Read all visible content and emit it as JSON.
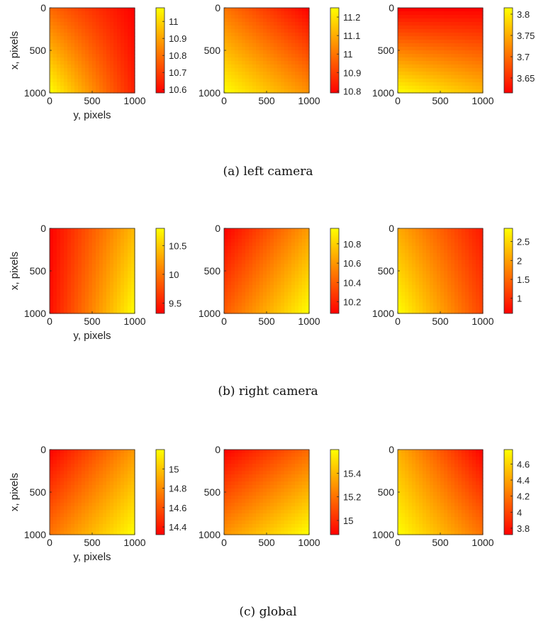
{
  "chart_data": [
    {
      "type": "heatmap",
      "group": "(a) left camera",
      "xlabel": "y, pixels",
      "ylabel": "x, pixels",
      "xlim": [
        0,
        1000
      ],
      "ylim": [
        0,
        1000
      ],
      "x_ticks": [
        "0",
        "500",
        "1000"
      ],
      "y_ticks": [
        "0",
        "500",
        "1000"
      ],
      "colormap": [
        "#ff0000",
        "#ffff00"
      ],
      "panels": [
        {
          "corners": {
            "top_left": 10.78,
            "top_right": 10.58,
            "bottom_left": 11.08,
            "bottom_right": 10.64
          },
          "colorbar": {
            "range": [
              10.58,
              11.08
            ],
            "ticks": [
              10.6,
              10.7,
              10.8,
              10.9,
              11
            ],
            "tick_labels": [
              "10.6",
              "10.7",
              "10.8",
              "10.9",
              "11"
            ]
          }
        },
        {
          "corners": {
            "top_left": 11.0,
            "top_right": 10.79,
            "bottom_left": 11.25,
            "bottom_right": 11.05
          },
          "colorbar": {
            "range": [
              10.79,
              11.25
            ],
            "ticks": [
              10.8,
              10.9,
              11,
              11.1,
              11.2
            ],
            "tick_labels": [
              "10.8",
              "10.9",
              "11",
              "11.1",
              "11.2"
            ]
          }
        },
        {
          "corners": {
            "top_left": 3.615,
            "top_right": 3.615,
            "bottom_left": 3.815,
            "bottom_right": 3.76
          },
          "colorbar": {
            "range": [
              3.615,
              3.815
            ],
            "ticks": [
              3.65,
              3.7,
              3.75,
              3.8
            ],
            "tick_labels": [
              "3.65",
              "3.7",
              "3.75",
              "3.8"
            ]
          }
        }
      ]
    },
    {
      "type": "heatmap",
      "group": "(b) right camera",
      "xlabel": "y, pixels",
      "ylabel": "x, pixels",
      "xlim": [
        0,
        1000
      ],
      "ylim": [
        0,
        1000
      ],
      "x_ticks": [
        "0",
        "500",
        "1000"
      ],
      "y_ticks": [
        "0",
        "500",
        "1000"
      ],
      "colormap": [
        "#ff0000",
        "#ffff00"
      ],
      "panels": [
        {
          "corners": {
            "top_left": 9.32,
            "top_right": 10.4,
            "bottom_left": 9.4,
            "bottom_right": 10.8
          },
          "colorbar": {
            "range": [
              9.32,
              10.8
            ],
            "ticks": [
              9.5,
              10,
              10.5
            ],
            "tick_labels": [
              "9.5",
              "10",
              "10.5"
            ]
          }
        },
        {
          "corners": {
            "top_left": 10.08,
            "top_right": 10.62,
            "bottom_left": 10.4,
            "bottom_right": 10.96
          },
          "colorbar": {
            "range": [
              10.08,
              10.96
            ],
            "ticks": [
              10.2,
              10.4,
              10.6,
              10.8
            ],
            "tick_labels": [
              "10.2",
              "10.4",
              "10.6",
              "10.8"
            ]
          }
        },
        {
          "corners": {
            "top_left": 2.1,
            "top_right": 0.8,
            "bottom_left": 2.85,
            "bottom_right": 1.2
          },
          "colorbar": {
            "range": [
              0.6,
              2.85
            ],
            "ticks": [
              1,
              1.5,
              2,
              2.5
            ],
            "tick_labels": [
              "1",
              "1.5",
              "2",
              "2.5"
            ]
          }
        }
      ]
    },
    {
      "type": "heatmap",
      "group": "(c) global",
      "xlabel": "y, pixels",
      "ylabel": "x, pixels",
      "xlim": [
        0,
        1000
      ],
      "ylim": [
        0,
        1000
      ],
      "x_ticks": [
        "0",
        "500",
        "1000"
      ],
      "y_ticks": [
        "0",
        "500",
        "1000"
      ],
      "colormap": [
        "#ff0000",
        "#ffff00"
      ],
      "panels": [
        {
          "corners": {
            "top_left": 14.32,
            "top_right": 14.85,
            "bottom_left": 14.72,
            "bottom_right": 15.2
          },
          "colorbar": {
            "range": [
              14.32,
              15.2
            ],
            "ticks": [
              14.4,
              14.6,
              14.8,
              15
            ],
            "tick_labels": [
              "14.4",
              "14.6",
              "14.8",
              "15"
            ]
          }
        },
        {
          "corners": {
            "top_left": 14.88,
            "top_right": 15.18,
            "bottom_left": 15.3,
            "bottom_right": 15.6
          },
          "colorbar": {
            "range": [
              14.88,
              15.6
            ],
            "ticks": [
              15,
              15.2,
              15.4
            ],
            "tick_labels": [
              "15",
              "15.2",
              "15.4"
            ]
          }
        },
        {
          "corners": {
            "top_left": 4.45,
            "top_right": 3.72,
            "bottom_left": 4.78,
            "bottom_right": 4.2
          },
          "colorbar": {
            "range": [
              3.72,
              4.78
            ],
            "ticks": [
              3.8,
              4,
              4.2,
              4.4,
              4.6
            ],
            "tick_labels": [
              "3.8",
              "4",
              "4.2",
              "4.4",
              "4.6"
            ]
          }
        }
      ]
    }
  ],
  "captions": [
    "(a) left camera",
    "(b) right camera",
    "(c) global"
  ]
}
